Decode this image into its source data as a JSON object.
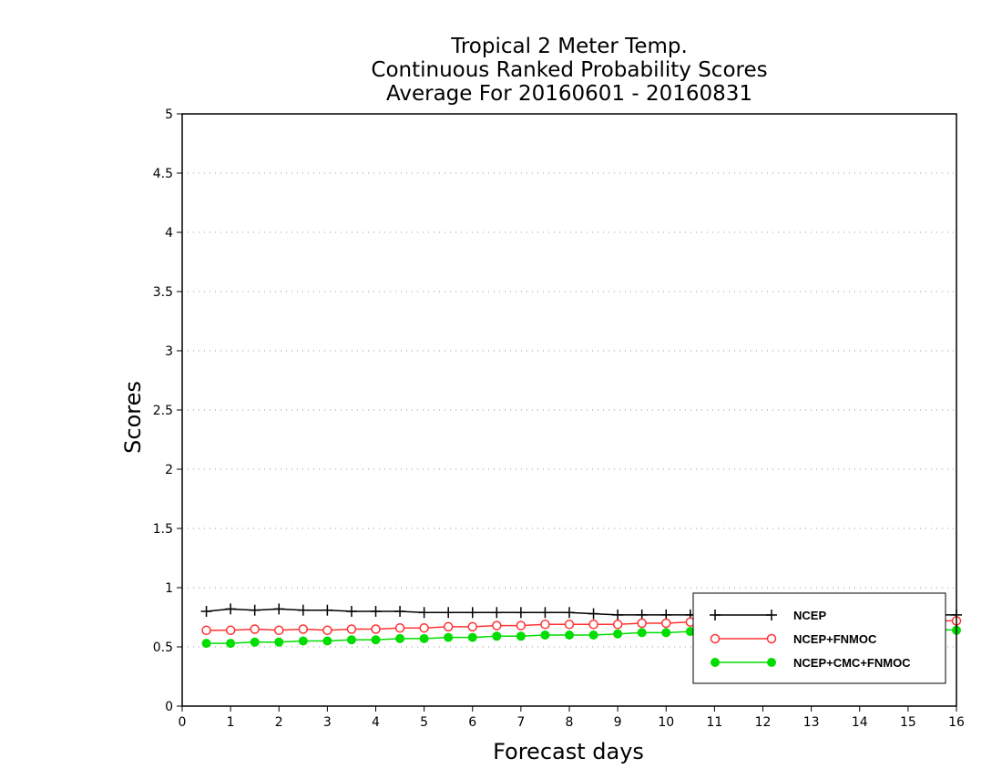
{
  "chart_data": {
    "type": "line",
    "title": [
      "Tropical 2 Meter Temp.",
      "Continuous Ranked Probability Scores",
      "Average For 20160601 - 20160831"
    ],
    "xlabel": "Forecast days",
    "ylabel": "Scores",
    "xlim": [
      0,
      16
    ],
    "ylim": [
      0,
      5
    ],
    "x_ticks": [
      "0",
      "1",
      "2",
      "3",
      "4",
      "5",
      "6",
      "7",
      "8",
      "9",
      "10",
      "11",
      "12",
      "13",
      "14",
      "15",
      "16"
    ],
    "y_ticks": [
      "0",
      "0.5",
      "1",
      "1.5",
      "2",
      "2.5",
      "3",
      "3.5",
      "4",
      "4.5",
      "5"
    ],
    "grid": "horizontal dotted",
    "legend_position": "bottom-right",
    "x": [
      0.5,
      1,
      1.5,
      2,
      2.5,
      3,
      3.5,
      4,
      4.5,
      5,
      5.5,
      6,
      6.5,
      7,
      7.5,
      8,
      8.5,
      9,
      9.5,
      10,
      10.5,
      11,
      11.5,
      12,
      12.5,
      13,
      13.5,
      14,
      14.5,
      15,
      15.5,
      16
    ],
    "series": [
      {
        "name": "NCEP",
        "color": "#000000",
        "marker": "plus",
        "values": [
          0.8,
          0.82,
          0.81,
          0.82,
          0.81,
          0.81,
          0.8,
          0.8,
          0.8,
          0.79,
          0.79,
          0.79,
          0.79,
          0.79,
          0.79,
          0.79,
          0.78,
          0.77,
          0.77,
          0.77,
          0.77,
          0.77,
          0.77,
          0.77,
          0.77,
          0.77,
          0.77,
          0.77,
          0.77,
          0.77,
          0.77,
          0.77
        ]
      },
      {
        "name": "NCEP+FNMOC",
        "color": "#ff3333",
        "marker": "open-circle",
        "values": [
          0.64,
          0.64,
          0.65,
          0.64,
          0.65,
          0.64,
          0.65,
          0.65,
          0.66,
          0.66,
          0.67,
          0.67,
          0.68,
          0.68,
          0.69,
          0.69,
          0.69,
          0.69,
          0.7,
          0.7,
          0.71,
          0.71,
          0.71,
          0.71,
          0.71,
          0.71,
          0.72,
          0.72,
          0.72,
          0.72,
          0.72,
          0.72
        ]
      },
      {
        "name": "NCEP+CMC+FNMOC",
        "color": "#00dd00",
        "marker": "filled-circle",
        "values": [
          0.53,
          0.53,
          0.54,
          0.54,
          0.55,
          0.55,
          0.56,
          0.56,
          0.57,
          0.57,
          0.58,
          0.58,
          0.59,
          0.59,
          0.6,
          0.6,
          0.6,
          0.61,
          0.62,
          0.62,
          0.63,
          0.63,
          0.63,
          0.63,
          0.64,
          0.64,
          0.64,
          0.64,
          0.64,
          0.65,
          0.65,
          0.64
        ]
      }
    ]
  }
}
